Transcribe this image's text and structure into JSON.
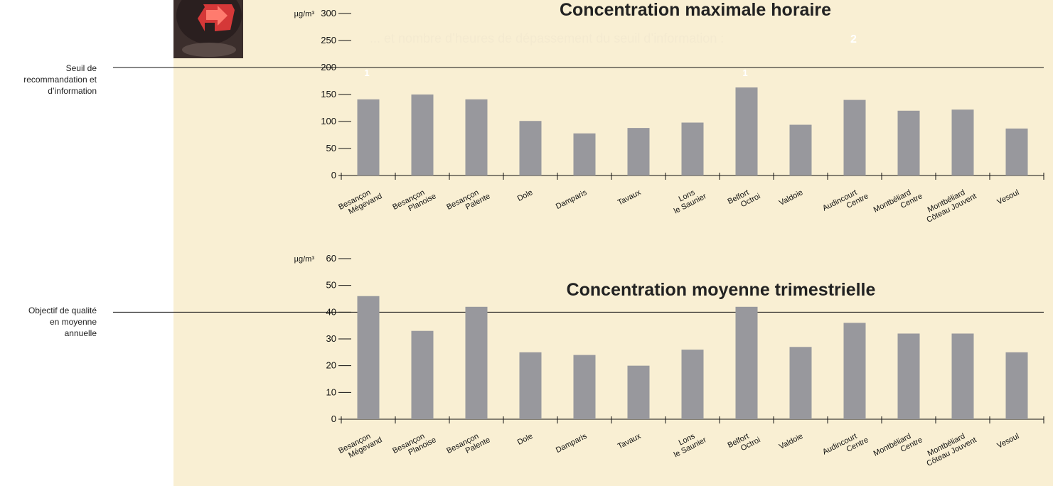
{
  "side_labels": {
    "top": [
      "Seuil de",
      "recommandation et",
      "d’information"
    ],
    "bottom": [
      "Objectif de qualité",
      "en moyenne",
      "annuelle"
    ]
  },
  "colors": {
    "bar": "#98989d",
    "panel": "#f9efd3",
    "subtitle_text": "#f4ead0",
    "count_text": "#ffffff",
    "title_text": "#222222"
  },
  "photo": {
    "icon": "red-arrow-traffic-sign-icon"
  },
  "chart_data": [
    {
      "type": "bar",
      "title": "Concentration maximale horaire",
      "subtitle": "... et nombre d’heures de dépassement du seuil d’information :",
      "subtitle_value": "2",
      "ylabel": "µg/m³",
      "ylim": [
        0,
        300
      ],
      "yticks": [
        0,
        50,
        100,
        150,
        200,
        250,
        300
      ],
      "categories": [
        [
          "Besançon",
          "Mégevand"
        ],
        [
          "Besançon",
          "Planoise"
        ],
        [
          "Besançon",
          "Palente"
        ],
        [
          "Dole"
        ],
        [
          "Damparis"
        ],
        [
          "Tavaux"
        ],
        [
          "Lons",
          "le Saunier"
        ],
        [
          "Belfort",
          "Octroi"
        ],
        [
          "Valdoie"
        ],
        [
          "Audincourt",
          "Centre"
        ],
        [
          "Montbéliard",
          "Centre"
        ],
        [
          "Montbéliard",
          "Côteau Jouvent"
        ],
        [
          "Vesoul"
        ]
      ],
      "values": [
        141,
        150,
        141,
        101,
        78,
        88,
        98,
        163,
        94,
        140,
        120,
        122,
        87
      ],
      "bar_labels": [
        "1",
        "",
        "",
        "",
        "",
        "",
        "",
        "1",
        "",
        "",
        "",
        "",
        ""
      ],
      "reference_line": {
        "value": 200
      }
    },
    {
      "type": "bar",
      "title": "Concentration moyenne trimestrielle",
      "ylabel": "µg/m³",
      "ylim": [
        0,
        60
      ],
      "yticks": [
        0,
        10,
        20,
        30,
        40,
        50,
        60
      ],
      "categories": [
        [
          "Besançon",
          "Mégevand"
        ],
        [
          "Besançon",
          "Planoise"
        ],
        [
          "Besançon",
          "Palente"
        ],
        [
          "Dole"
        ],
        [
          "Damparis"
        ],
        [
          "Tavaux"
        ],
        [
          "Lons",
          "le Saunier"
        ],
        [
          "Belfort",
          "Octroi"
        ],
        [
          "Valdoie"
        ],
        [
          "Audincourt",
          "Centre"
        ],
        [
          "Montbéliard",
          "Centre"
        ],
        [
          "Montbéliard",
          "Côteau Jouvent"
        ],
        [
          "Vesoul"
        ]
      ],
      "values": [
        46,
        33,
        42,
        25,
        24,
        20,
        26,
        42,
        27,
        36,
        32,
        32,
        25
      ],
      "reference_line": {
        "value": 40
      }
    }
  ]
}
